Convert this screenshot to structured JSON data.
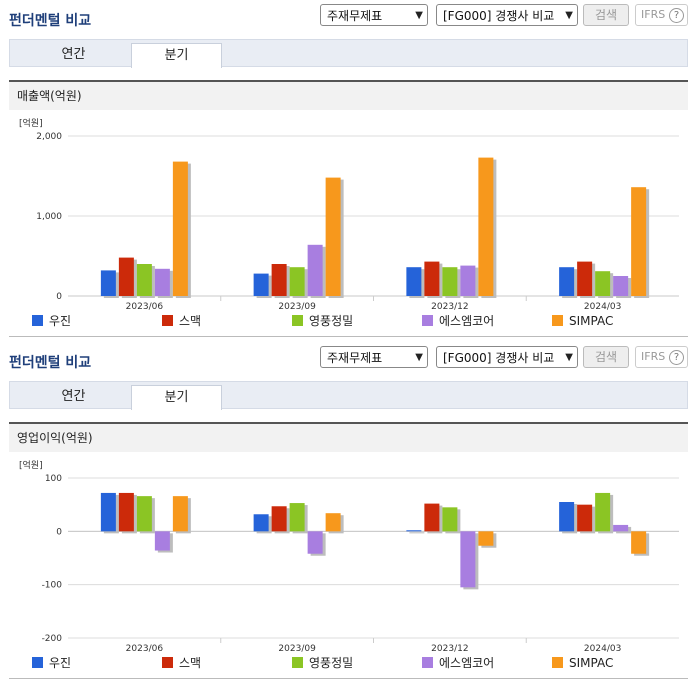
{
  "sections": [
    {
      "title": "펀더멘털 비교",
      "select1": "주재무제표",
      "select2": "[FG000] 경쟁사 비교",
      "search": "검색",
      "ifrs": "IFRS",
      "tabs": [
        "연간",
        "분기"
      ],
      "panel_title": "매출액(억원)"
    },
    {
      "title": "펀더멘털 비교",
      "select1": "주재무제표",
      "select2": "[FG000] 경쟁사 비교",
      "search": "검색",
      "ifrs": "IFRS",
      "tabs": [
        "연간",
        "분기"
      ],
      "panel_title": "영업이익(억원)"
    }
  ],
  "legend": [
    "우진",
    "스맥",
    "영풍정밀",
    "에스엠코어",
    "SIMPAC"
  ],
  "colors": [
    "#2563d9",
    "#cc2a0a",
    "#8bc524",
    "#a87ee0",
    "#f7981c"
  ],
  "chart_data": [
    {
      "type": "bar",
      "title": "매출액(억원)",
      "unit": "[억원]",
      "categories": [
        "2023/06",
        "2023/09",
        "2023/12",
        "2024/03"
      ],
      "ylim": [
        0,
        2000
      ],
      "yticks": [
        "2,000",
        "1,000",
        "0"
      ],
      "series": [
        {
          "name": "우진",
          "values": [
            320,
            280,
            360,
            360
          ]
        },
        {
          "name": "스맥",
          "values": [
            480,
            400,
            430,
            430
          ]
        },
        {
          "name": "영풍정밀",
          "values": [
            400,
            360,
            360,
            310
          ]
        },
        {
          "name": "에스엠코어",
          "values": [
            340,
            640,
            380,
            250
          ]
        },
        {
          "name": "SIMPAC",
          "values": [
            1680,
            1480,
            1730,
            1360
          ]
        }
      ]
    },
    {
      "type": "bar",
      "title": "영업이익(억원)",
      "unit": "[억원]",
      "categories": [
        "2023/06",
        "2023/09",
        "2023/12",
        "2024/03"
      ],
      "ylim": [
        -200,
        100
      ],
      "yticks": [
        "100",
        "0",
        "-100",
        "-200"
      ],
      "series": [
        {
          "name": "우진",
          "values": [
            72,
            32,
            2,
            55
          ]
        },
        {
          "name": "스맥",
          "values": [
            72,
            47,
            52,
            50
          ]
        },
        {
          "name": "영풍정밀",
          "values": [
            66,
            53,
            45,
            72
          ]
        },
        {
          "name": "에스엠코어",
          "values": [
            -36,
            -42,
            -105,
            12
          ]
        },
        {
          "name": "SIMPAC",
          "values": [
            66,
            34,
            -27,
            -42
          ]
        }
      ]
    }
  ]
}
